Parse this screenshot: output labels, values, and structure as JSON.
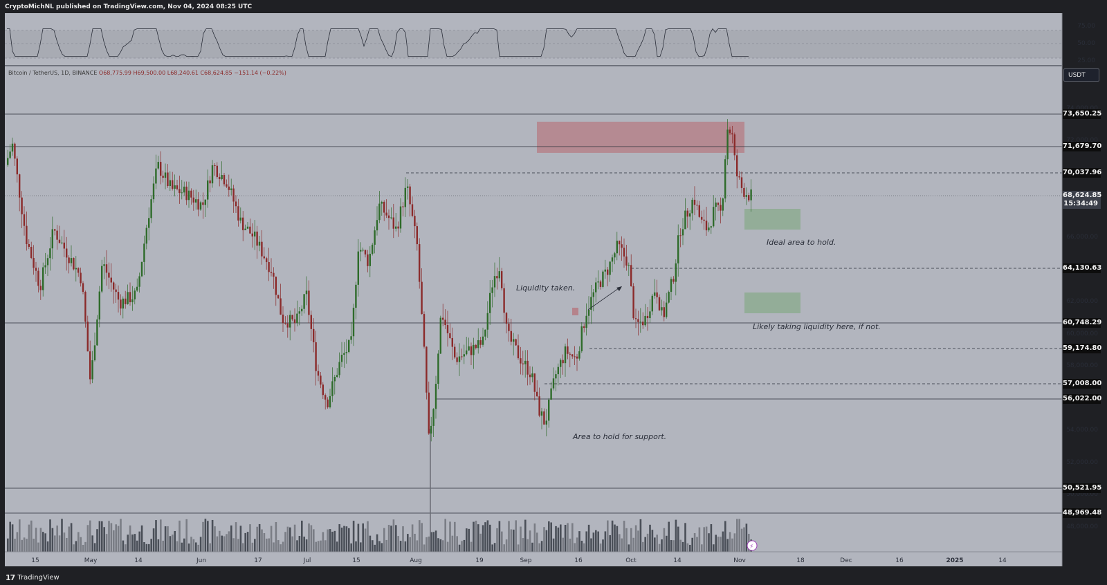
{
  "header": {
    "publisher": "CryptoMichNL published on TradingView.com, Nov 04, 2024 08:25 UTC"
  },
  "footer": {
    "brand": "TradingView"
  },
  "symbol_info": {
    "name": "Bitcoin / TetherUS, 1D, BINANCE",
    "ohlc": "O68,775.99 H69,500.00 L68,240.61 C68,624.85 −151.14 (−0.22%)"
  },
  "currency_button": "USDT",
  "rsi_axis": [
    "75.00",
    "50.00",
    "25.00"
  ],
  "price_axis": [
    "74,000.00",
    "72,000.00",
    "66,000.00",
    "62,000.00",
    "60,000.00",
    "58,000.00",
    "54,000.00",
    "52,000.00",
    "50,000.00",
    "48,000.00"
  ],
  "level_labels": [
    "73,650.25",
    "71,679.70",
    "70,037.96",
    "64,130.63",
    "60,748.29",
    "59,174.80",
    "57,008.00",
    "56,022.00",
    "50,521.95",
    "48,969.48"
  ],
  "current_price": {
    "price": "68,624.85",
    "countdown": "15:34:49"
  },
  "time_axis": [
    "15",
    "May",
    "14",
    "Jun",
    "17",
    "Jul",
    "15",
    "Aug",
    "19",
    "Sep",
    "16",
    "Oct",
    "14",
    "Nov",
    "18",
    "Dec",
    "16",
    "2025",
    "14"
  ],
  "annotations": {
    "liquidity_taken": "Liquidity taken.",
    "ideal_area": "Ideal area to hold.",
    "likely_liquidity": "Likely taking liquidity here, if not.",
    "support_area": "Area to hold for support."
  },
  "colors": {
    "up": "#2e6b2a",
    "down": "#8b2a2a",
    "supply_zone": "#b5838b",
    "demand_zone": "#8fac93",
    "background": "#b2b5be"
  },
  "chart_data": {
    "type": "candlestick",
    "symbol": "Bitcoin / TetherUS",
    "interval": "1D",
    "exchange": "BINANCE",
    "last": {
      "open": 68775.99,
      "high": 69500.0,
      "low": 68240.61,
      "close": 68624.85,
      "change": -151.14,
      "change_pct": -0.22
    },
    "horizontal_levels": [
      73650.25,
      71679.7,
      70037.96,
      64130.63,
      60748.29,
      59174.8,
      57008.0,
      56022.0,
      50521.95,
      48969.48
    ],
    "zones": [
      {
        "kind": "supply",
        "from": 71679.7,
        "to": 73650.25
      },
      {
        "kind": "demand",
        "from": 66500,
        "to": 67800
      },
      {
        "kind": "demand",
        "from": 61300,
        "to": 62600
      }
    ],
    "ylim": [
      46000,
      75000
    ]
  }
}
